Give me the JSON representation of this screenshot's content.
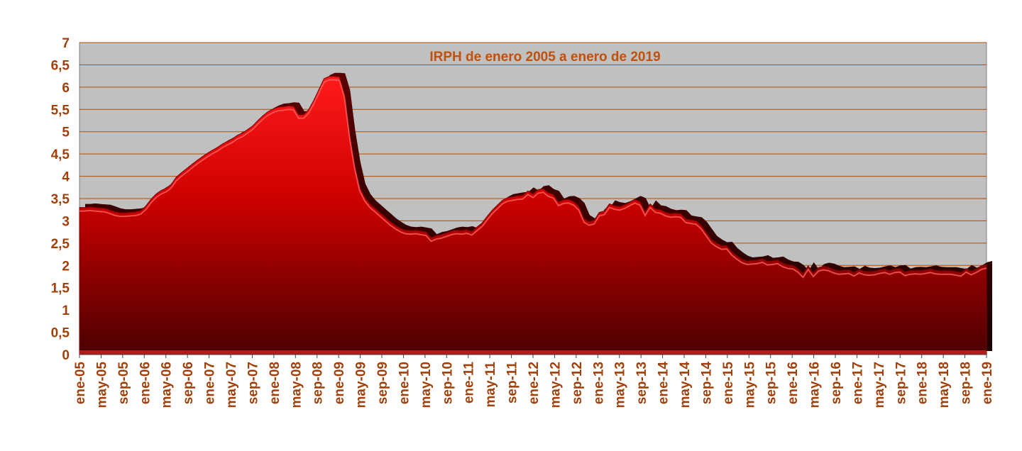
{
  "chart_data": {
    "type": "area",
    "title": "IRPH de enero 2005 a enero de 2019",
    "xlabel": "",
    "ylabel": "",
    "ylim": [
      0,
      7
    ],
    "y_ticks": [
      "0",
      "0,5",
      "1",
      "1,5",
      "2",
      "2,5",
      "3",
      "3,5",
      "4",
      "4,5",
      "5",
      "5,5",
      "6",
      "6,5",
      "7"
    ],
    "x_tick_labels": [
      "ene-05",
      "may-05",
      "sep-05",
      "ene-06",
      "may-06",
      "sep-06",
      "ene-07",
      "may-07",
      "sep-07",
      "ene-08",
      "may-08",
      "sep-08",
      "ene-09",
      "may-09",
      "sep-09",
      "ene-10",
      "may-10",
      "sep-10",
      "ene-11",
      "may-11",
      "sep-11",
      "ene-12",
      "may-12",
      "sep-12",
      "ene-13",
      "may-13",
      "sep-13",
      "ene-14",
      "may-14",
      "sep-14",
      "ene-15",
      "may-15",
      "sep-15",
      "ene-16",
      "may-16",
      "sep-16",
      "ene-17",
      "may-17",
      "sep-17",
      "ene-18",
      "may-18",
      "sep-18",
      "ene-19"
    ],
    "grid": true,
    "legend": "none",
    "colors": {
      "plot_background": "#c0c0c0",
      "gridline": "#b94a00",
      "axis_text": "#a0400a",
      "area_top": "#ff0000",
      "area_bottom": "#5a0000"
    },
    "series": [
      {
        "values": [
          3.3,
          3.3,
          3.31,
          3.3,
          3.29,
          3.28,
          3.24,
          3.2,
          3.18,
          3.18,
          3.19,
          3.2,
          3.23,
          3.33,
          3.48,
          3.6,
          3.68,
          3.73,
          3.82,
          3.98,
          4.08,
          4.17,
          4.26,
          4.35,
          4.43,
          4.51,
          4.58,
          4.64,
          4.72,
          4.78,
          4.84,
          4.92,
          4.97,
          5.05,
          5.13,
          5.25,
          5.36,
          5.45,
          5.51,
          5.55,
          5.56,
          5.58,
          5.57,
          5.38,
          5.38,
          5.5,
          5.71,
          5.95,
          6.19,
          6.24,
          6.24,
          6.23,
          5.85,
          4.95,
          4.25,
          3.75,
          3.52,
          3.38,
          3.28,
          3.18,
          3.08,
          2.98,
          2.9,
          2.83,
          2.79,
          2.78,
          2.79,
          2.77,
          2.75,
          2.62,
          2.67,
          2.69,
          2.73,
          2.77,
          2.79,
          2.78,
          2.8,
          2.76,
          2.86,
          2.95,
          3.1,
          3.24,
          3.35,
          3.46,
          3.52,
          3.54,
          3.56,
          3.57,
          3.67,
          3.6,
          3.7,
          3.72,
          3.63,
          3.59,
          3.42,
          3.47,
          3.48,
          3.43,
          3.32,
          3.05,
          2.98,
          3.01,
          3.19,
          3.22,
          3.38,
          3.34,
          3.32,
          3.36,
          3.42,
          3.48,
          3.43,
          3.2,
          3.38,
          3.27,
          3.25,
          3.19,
          3.16,
          3.17,
          3.16,
          3.04,
          3.02,
          3.0,
          2.9,
          2.74,
          2.58,
          2.5,
          2.44,
          2.45,
          2.31,
          2.22,
          2.14,
          2.1,
          2.11,
          2.12,
          2.15,
          2.09,
          2.1,
          2.12,
          2.05,
          2.01,
          2.0,
          1.93,
          1.81,
          1.99,
          1.83,
          1.95,
          1.98,
          1.96,
          1.91,
          1.88,
          1.89,
          1.9,
          1.84,
          1.91,
          1.87,
          1.86,
          1.87,
          1.9,
          1.92,
          1.88,
          1.92,
          1.93,
          1.85,
          1.88,
          1.89,
          1.88,
          1.9,
          1.92,
          1.89,
          1.88,
          1.88,
          1.88,
          1.86,
          1.84,
          1.93,
          1.87,
          1.92,
          1.99,
          2.02
        ]
      }
    ]
  }
}
